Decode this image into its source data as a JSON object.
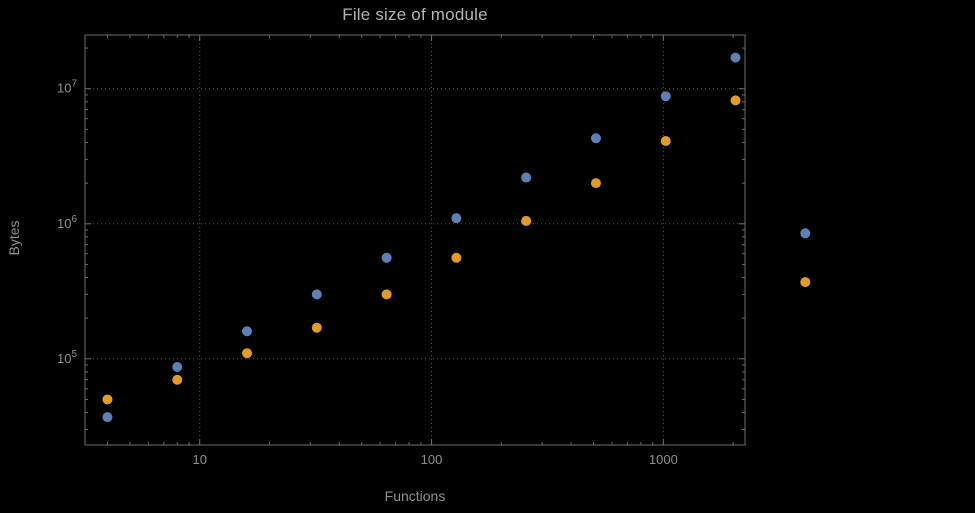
{
  "chart_data": {
    "type": "scatter",
    "title": "File size of module",
    "xlabel": "Functions",
    "ylabel": "Bytes",
    "x_scale": "log",
    "y_scale": "log",
    "x_range": [
      3.2,
      2250
    ],
    "y_range": [
      23000,
      25000000
    ],
    "x_ticks": [
      10,
      100,
      1000
    ],
    "y_ticks": [
      100000,
      1000000,
      10000000
    ],
    "grid": "dotted",
    "legend": "none",
    "x": [
      4,
      8,
      16,
      32,
      64,
      128,
      256,
      512,
      1024,
      2048,
      4096
    ],
    "series": [
      {
        "name": "series-1",
        "color": "#5e81b5",
        "values": [
          37000,
          87000,
          160000,
          300000,
          560000,
          1100000,
          2200000,
          4300000,
          8800000,
          17000000,
          850000
        ]
      },
      {
        "name": "series-2",
        "color": "#e19c24",
        "values": [
          50000,
          70000,
          110000,
          170000,
          300000,
          560000,
          1050000,
          2000000,
          4100000,
          8200000,
          370000
        ]
      }
    ],
    "colors": {
      "background": "#000000",
      "frame": "#6e6e6e",
      "grid": "#565656",
      "tick_text": "#8f8f8f",
      "title_text": "#b3b3b3"
    }
  }
}
